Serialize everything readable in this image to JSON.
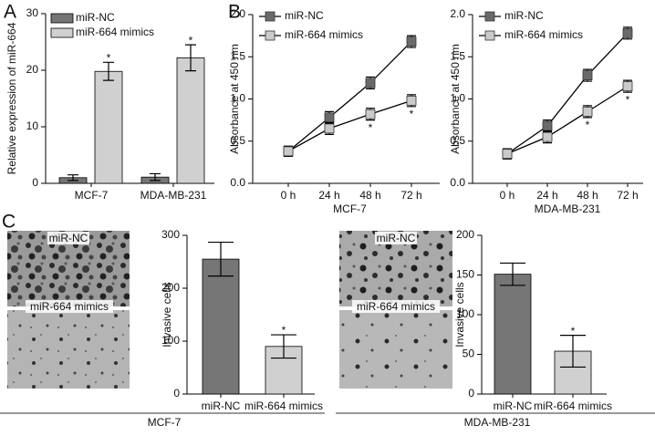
{
  "panel_labels": [
    "A",
    "B",
    "C"
  ],
  "image_labels": [
    [
      "miR-NC",
      "miR-664 mimics"
    ],
    [
      "miR-NC",
      "miR-664 mimics"
    ]
  ],
  "chart_data": [
    {
      "type": "bar",
      "ylabel": "Relative expression of miR-664",
      "categories": [
        "MCF-7",
        "MDA-MB-231"
      ],
      "series": [
        {
          "name": "miR-NC",
          "color": "#767676",
          "values": [
            1.0,
            1.1
          ],
          "errors": [
            0.5,
            0.6
          ]
        },
        {
          "name": "miR-664 mimics",
          "color": "#d0d0d0",
          "values": [
            19.8,
            22.2
          ],
          "errors": [
            1.6,
            2.3
          ],
          "significance": [
            "*",
            "*"
          ]
        }
      ],
      "ylim": [
        0,
        30
      ],
      "yticks": [
        0,
        10,
        20,
        30
      ],
      "legend": "upper left"
    },
    {
      "type": "line",
      "ylabel": "Absorbance at 450 nm",
      "xlabel": "MCF-7",
      "categories": [
        "0 h",
        "24 h",
        "48 h",
        "72 h"
      ],
      "series": [
        {
          "name": "miR-NC",
          "color": "#6a6a6a",
          "values": [
            0.38,
            0.78,
            1.19,
            1.68
          ],
          "errors": [
            0.06,
            0.07,
            0.07,
            0.07
          ]
        },
        {
          "name": "miR-664 mimics",
          "color": "#cacaca",
          "values": [
            0.38,
            0.65,
            0.82,
            0.98
          ],
          "errors": [
            0.06,
            0.07,
            0.07,
            0.07
          ],
          "significance": [
            null,
            null,
            "*",
            "*"
          ]
        }
      ],
      "ylim": [
        0,
        2
      ],
      "yticks": [
        {
          "value": 0,
          "label": "0.0"
        },
        0.5,
        {
          "value": 1,
          "label": "1.0"
        },
        1.5,
        {
          "value": 2,
          "label": "2.0"
        }
      ],
      "legend": "upper left"
    },
    {
      "type": "line",
      "ylabel": "Absorbance at 450 nm",
      "xlabel": "MDA-MB-231",
      "categories": [
        "0 h",
        "24 h",
        "48 h",
        "72 h"
      ],
      "series": [
        {
          "name": "miR-NC",
          "color": "#6a6a6a",
          "values": [
            0.35,
            0.68,
            1.28,
            1.78
          ],
          "errors": [
            0.06,
            0.07,
            0.07,
            0.07
          ]
        },
        {
          "name": "miR-664 mimics",
          "color": "#cacaca",
          "values": [
            0.35,
            0.55,
            0.85,
            1.15
          ],
          "errors": [
            0.06,
            0.07,
            0.07,
            0.07
          ],
          "significance": [
            null,
            null,
            "*",
            "*"
          ]
        }
      ],
      "ylim": [
        0,
        2
      ],
      "yticks": [
        {
          "value": 0,
          "label": "0.0"
        },
        0.5,
        {
          "value": 1,
          "label": "1.0"
        },
        1.5,
        {
          "value": 2,
          "label": "2.0"
        }
      ],
      "legend": "upper left"
    },
    {
      "type": "bar",
      "ylabel": "Invasive cells",
      "group_label": "MCF-7",
      "categories": [
        "miR-NC",
        "miR-664 mimics"
      ],
      "values": [
        255,
        90
      ],
      "errors": [
        32,
        22
      ],
      "colors": [
        "#767676",
        "#d0d0d0"
      ],
      "significance": [
        null,
        "*"
      ],
      "ylim": [
        0,
        300
      ],
      "yticks": [
        0,
        100,
        200,
        300
      ]
    },
    {
      "type": "bar",
      "ylabel": "Invasive cells",
      "group_label": "MDA-MB-231",
      "categories": [
        "miR-NC",
        "miR-664 mimics"
      ],
      "values": [
        151,
        54
      ],
      "errors": [
        14,
        20
      ],
      "colors": [
        "#767676",
        "#d0d0d0"
      ],
      "significance": [
        null,
        "*"
      ],
      "ylim": [
        0,
        200
      ],
      "yticks": [
        0,
        50,
        100,
        150,
        200
      ]
    }
  ]
}
